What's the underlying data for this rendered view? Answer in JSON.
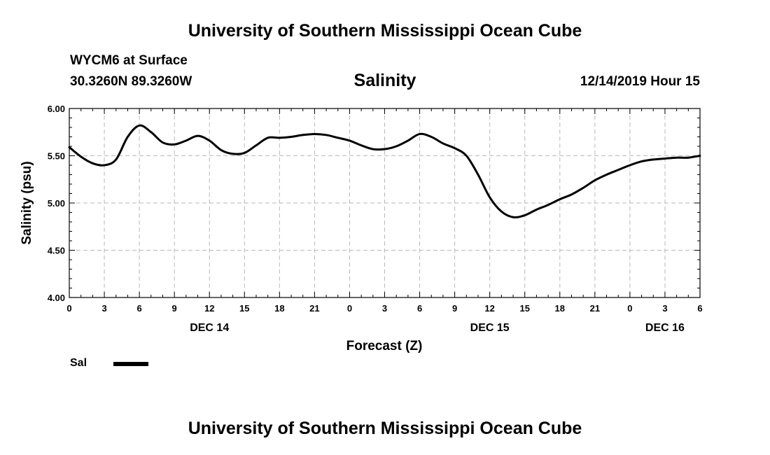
{
  "header": {
    "institution_title": "University of Southern Mississippi Ocean Cube",
    "station": "WYCM6 at Surface",
    "coordinates": "30.3260N 89.3260W",
    "datetime": "12/14/2019 Hour 15",
    "footer_title": "University of Southern Mississippi Ocean Cube"
  },
  "chart_data": {
    "type": "line",
    "title": "Salinity",
    "xlabel": "Forecast (Z)",
    "ylabel": "Salinity (psu)",
    "ylim": [
      4.0,
      6.0
    ],
    "xlim": [
      0,
      54
    ],
    "grid": true,
    "x_tick_values": [
      0,
      3,
      6,
      9,
      12,
      15,
      18,
      21,
      24,
      27,
      30,
      33,
      36,
      39,
      42,
      45,
      48,
      51,
      54
    ],
    "x_tick_labels": [
      "0",
      "3",
      "6",
      "9",
      "12",
      "15",
      "18",
      "21",
      "0",
      "3",
      "6",
      "9",
      "12",
      "15",
      "18",
      "21",
      "0",
      "3",
      "6"
    ],
    "y_tick_values": [
      4.0,
      4.5,
      5.0,
      5.5,
      6.0
    ],
    "y_tick_labels": [
      "4.00",
      "4.50",
      "5.00",
      "5.50",
      "6.00"
    ],
    "date_labels": [
      {
        "x": 12,
        "label": "DEC 14"
      },
      {
        "x": 36,
        "label": "DEC 15"
      },
      {
        "x": 51,
        "label": "DEC 16"
      }
    ],
    "series": [
      {
        "name": "Sal",
        "color": "#000000",
        "x": [
          0,
          1,
          2,
          3,
          4,
          5,
          6,
          7,
          8,
          9,
          10,
          11,
          12,
          13,
          14,
          15,
          16,
          17,
          18,
          19,
          20,
          21,
          22,
          23,
          24,
          25,
          26,
          27,
          28,
          29,
          30,
          31,
          32,
          33,
          34,
          35,
          36,
          37,
          38,
          39,
          40,
          41,
          42,
          43,
          44,
          45,
          46,
          47,
          48,
          49,
          50,
          51,
          52,
          53,
          54
        ],
        "values": [
          5.59,
          5.49,
          5.42,
          5.4,
          5.46,
          5.7,
          5.82,
          5.75,
          5.64,
          5.62,
          5.66,
          5.71,
          5.66,
          5.56,
          5.52,
          5.53,
          5.61,
          5.69,
          5.69,
          5.7,
          5.72,
          5.73,
          5.72,
          5.69,
          5.66,
          5.61,
          5.57,
          5.57,
          5.6,
          5.66,
          5.73,
          5.7,
          5.63,
          5.58,
          5.5,
          5.3,
          5.06,
          4.91,
          4.85,
          4.87,
          4.93,
          4.98,
          5.04,
          5.09,
          5.16,
          5.24,
          5.3,
          5.35,
          5.4,
          5.44,
          5.46,
          5.47,
          5.48,
          5.48,
          5.5
        ]
      }
    ],
    "legend": [
      {
        "label": "Sal",
        "position": "bottom-left"
      }
    ]
  }
}
